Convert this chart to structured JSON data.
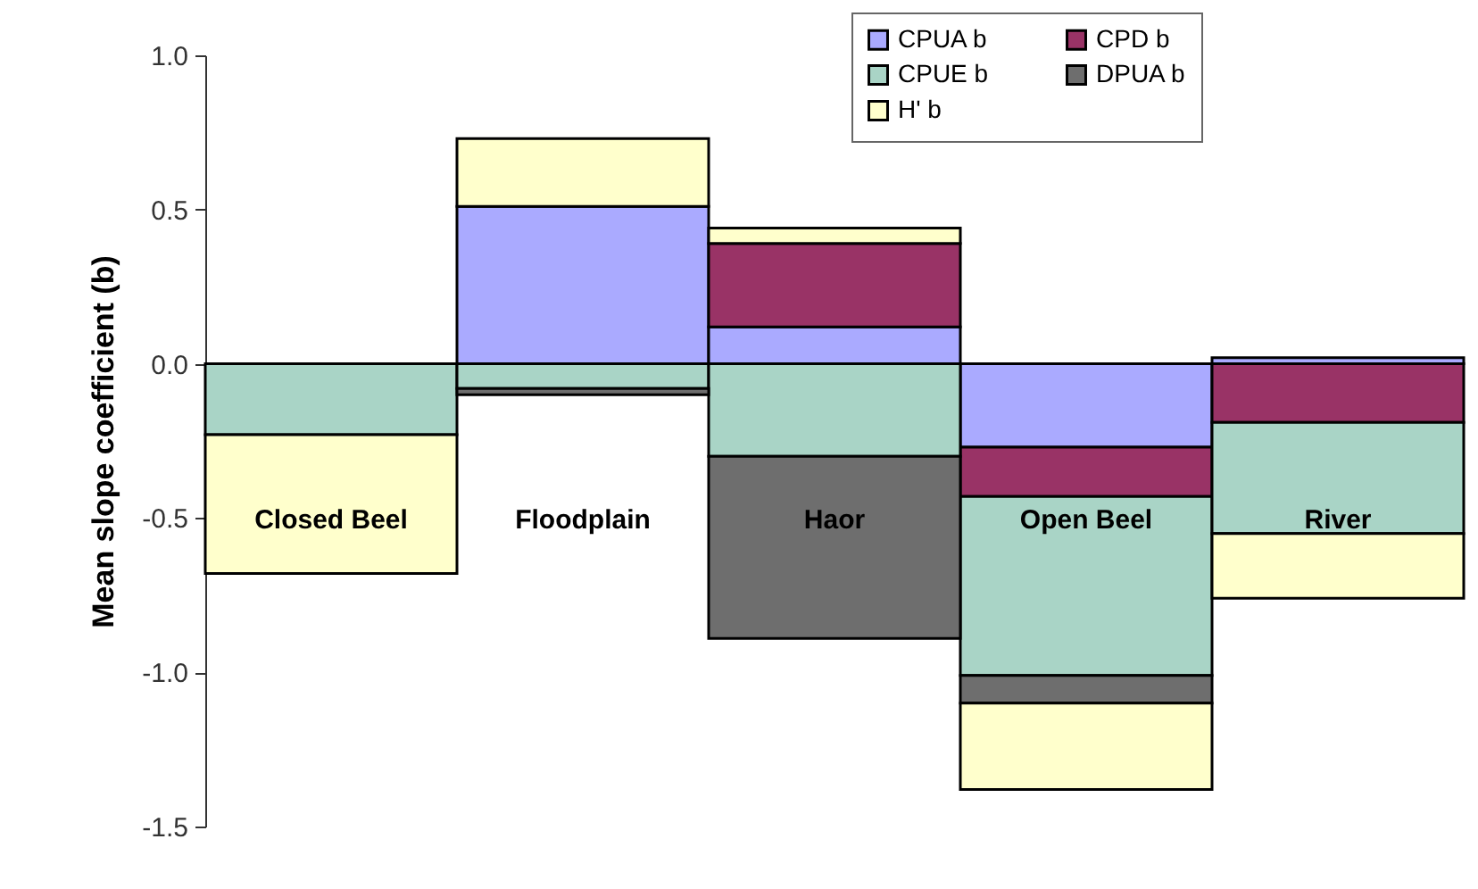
{
  "chart_data": {
    "type": "bar",
    "stacked": true,
    "ylabel": "Mean slope coefficient (b)",
    "categories": [
      "Closed Beel",
      "Floodplain",
      "Haor",
      "Open Beel",
      "River"
    ],
    "series": [
      {
        "name": "CPUA b",
        "color": "#aaaaff",
        "values": [
          null,
          0.51,
          0.12,
          -0.27,
          0.02
        ]
      },
      {
        "name": "CPD b",
        "color": "#993366",
        "values": [
          null,
          null,
          0.27,
          -0.16,
          -0.19
        ]
      },
      {
        "name": "CPUE b",
        "color": "#a9d4c6",
        "values": [
          -0.23,
          -0.08,
          -0.3,
          -0.58,
          -0.36
        ]
      },
      {
        "name": "DPUA b",
        "color": "#6e6e6e",
        "values": [
          null,
          -0.02,
          -0.59,
          -0.09,
          null
        ]
      },
      {
        "name": "H' b",
        "color": "#ffffcc",
        "values": [
          -0.45,
          0.22,
          0.05,
          -0.28,
          -0.21
        ]
      }
    ],
    "ylim": [
      -1.5,
      1.0
    ],
    "yticks": [
      {
        "value": -1.5,
        "label": "-1.5"
      },
      {
        "value": -1.0,
        "label": "-1.0"
      },
      {
        "value": -0.5,
        "label": "-0.5"
      },
      {
        "value": 0,
        "label": "0.0"
      },
      {
        "value": 0.5,
        "label": "0.5"
      },
      {
        "value": 1.0,
        "label": "1.0"
      }
    ],
    "grid": false,
    "legend": "top right"
  }
}
